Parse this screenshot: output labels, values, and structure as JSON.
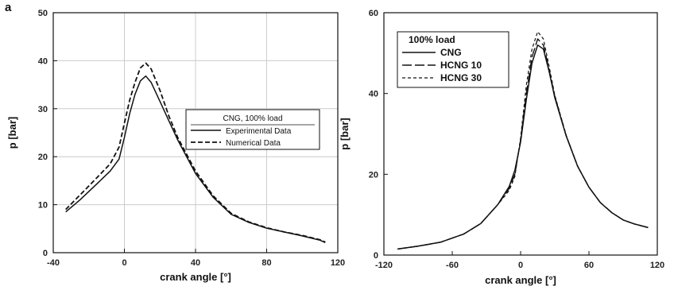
{
  "panel_label": "a",
  "chart_data": [
    {
      "type": "line",
      "title": "",
      "xlabel": "crank angle [°]",
      "ylabel": "p [bar]",
      "xlim": [
        -40,
        120
      ],
      "ylim": [
        0,
        50
      ],
      "xticks": [
        -40,
        0,
        40,
        80,
        120
      ],
      "xtick_labels": [
        "-40",
        "0",
        "40",
        "80",
        "120"
      ],
      "yticks": [
        0,
        10,
        20,
        30,
        40,
        50
      ],
      "grid": true,
      "legend": {
        "title": "CNG, 100% load",
        "placement": "center-right",
        "entries": [
          "Experimental Data",
          "Numerical Data"
        ]
      },
      "series": [
        {
          "name": "Experimental Data",
          "style": "solid",
          "color": "#111111",
          "x": [
            -33,
            -25,
            -15,
            -8,
            -3,
            0,
            3,
            6,
            9,
            12,
            15,
            20,
            25,
            30,
            40,
            50,
            60,
            70,
            80,
            90,
            100,
            110,
            113
          ],
          "y": [
            8.5,
            11,
            14.5,
            17,
            19.5,
            24,
            29,
            33,
            35.8,
            36.8,
            35.5,
            31.5,
            27.5,
            23.5,
            16.5,
            11.5,
            8,
            6.3,
            5.1,
            4.3,
            3.5,
            2.6,
            2.1
          ]
        },
        {
          "name": "Numerical Data",
          "style": "dashed",
          "color": "#111111",
          "x": [
            -33,
            -25,
            -15,
            -8,
            -3,
            0,
            3,
            6,
            9,
            12,
            15,
            20,
            25,
            30,
            40,
            50,
            60,
            70,
            80,
            90,
            100,
            110,
            113
          ],
          "y": [
            9,
            12,
            15.8,
            18.5,
            22,
            27,
            31.8,
            35.5,
            38.5,
            39.5,
            38.3,
            33.8,
            28.5,
            24,
            17,
            11.8,
            8.2,
            6.4,
            5.2,
            4.3,
            3.6,
            2.7,
            2.2
          ]
        }
      ]
    },
    {
      "type": "line",
      "title": "",
      "xlabel": "crank angle [°]",
      "ylabel": "p [bar]",
      "xlim": [
        -120,
        120
      ],
      "ylim": [
        0,
        60
      ],
      "xticks": [
        -120,
        -60,
        0,
        60,
        120
      ],
      "xtick_labels": [
        "-120",
        "-60",
        "0",
        "60",
        "120"
      ],
      "yticks": [
        0,
        20,
        40,
        60
      ],
      "grid": false,
      "legend": {
        "title": "100% load",
        "placement": "top-left",
        "entries": [
          "CNG",
          "HCNG 10",
          "HCNG 30"
        ]
      },
      "series": [
        {
          "name": "CNG",
          "style": "solid",
          "color": "#111111",
          "x": [
            -108,
            -90,
            -70,
            -50,
            -35,
            -20,
            -10,
            -5,
            0,
            5,
            10,
            15,
            20,
            25,
            30,
            40,
            50,
            60,
            70,
            80,
            90,
            100,
            112
          ],
          "y": [
            1.5,
            2.2,
            3.2,
            5.2,
            7.8,
            12.5,
            17,
            21,
            28,
            38.5,
            47.5,
            52,
            51,
            45.5,
            39,
            29.5,
            22,
            16.8,
            13,
            10.5,
            8.7,
            7.7,
            6.8
          ]
        },
        {
          "name": "HCNG 10",
          "style": "longdash",
          "color": "#111111",
          "x": [
            -108,
            -90,
            -70,
            -50,
            -35,
            -20,
            -10,
            -5,
            0,
            5,
            10,
            15,
            20,
            25,
            30,
            40,
            50,
            60,
            70,
            80,
            90,
            100,
            112
          ],
          "y": [
            1.5,
            2.2,
            3.2,
            5.2,
            7.8,
            12.5,
            16.5,
            20,
            28.5,
            40,
            49,
            53.5,
            52,
            46,
            39.3,
            29.6,
            22,
            16.8,
            13,
            10.5,
            8.7,
            7.7,
            6.8
          ]
        },
        {
          "name": "HCNG 30",
          "style": "shortdash",
          "color": "#111111",
          "x": [
            -108,
            -90,
            -70,
            -50,
            -35,
            -20,
            -10,
            -5,
            0,
            5,
            10,
            15,
            20,
            25,
            30,
            40,
            50,
            60,
            70,
            80,
            90,
            100,
            112
          ],
          "y": [
            1.5,
            2.2,
            3.2,
            5.2,
            7.8,
            12.5,
            16,
            19.5,
            29,
            42,
            51,
            55.3,
            53.5,
            46.8,
            39.6,
            29.7,
            22.1,
            16.8,
            13,
            10.5,
            8.7,
            7.7,
            6.8
          ]
        }
      ]
    }
  ]
}
